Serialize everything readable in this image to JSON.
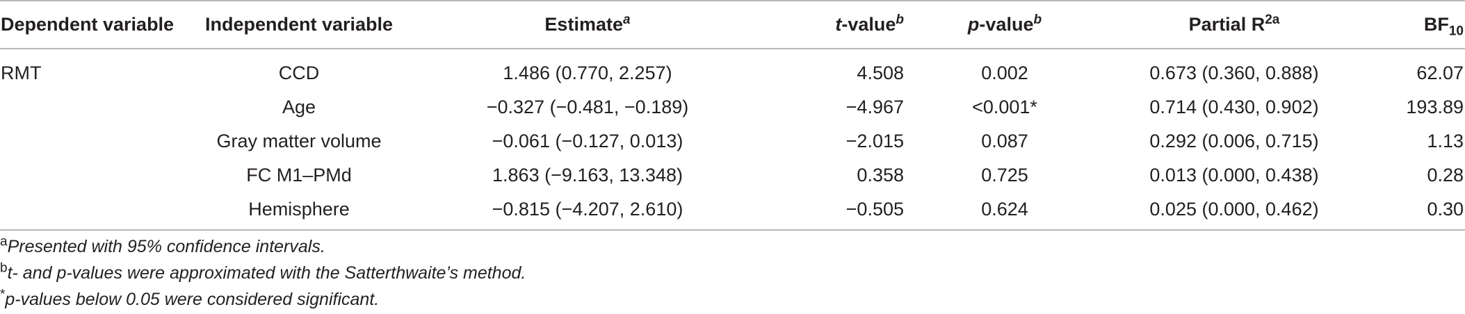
{
  "table": {
    "headers": {
      "dependent": "Dependent variable",
      "independent": "Independent variable",
      "estimate": "Estimate",
      "estimate_sup": "a",
      "t_value": "t",
      "t_value_rest": "-value",
      "t_value_sup": "b",
      "p_value": "p",
      "p_value_rest": "-value",
      "p_value_sup": "b",
      "partial_r2": "Partial R",
      "partial_r2_sup": "2a",
      "bf": "BF",
      "bf_sub": "10"
    },
    "rows": [
      {
        "dependent": "RMT",
        "independent": "CCD",
        "estimate": "1.486 (0.770, 2.257)",
        "t": "4.508",
        "p": "0.002",
        "r2": "0.673 (0.360, 0.888)",
        "bf": "62.07"
      },
      {
        "dependent": "",
        "independent": "Age",
        "estimate": "−0.327 (−0.481, −0.189)",
        "t": "−4.967",
        "p": "<0.001*",
        "r2": "0.714 (0.430, 0.902)",
        "bf": "193.89"
      },
      {
        "dependent": "",
        "independent": "Gray matter volume",
        "estimate": "−0.061 (−0.127, 0.013)",
        "t": "−2.015",
        "p": "0.087",
        "r2": "0.292 (0.006, 0.715)",
        "bf": "1.13"
      },
      {
        "dependent": "",
        "independent": "FC M1–PMd",
        "estimate": "1.863 (−9.163, 13.348)",
        "t": "0.358",
        "p": "0.725",
        "r2": "0.013 (0.000, 0.438)",
        "bf": "0.28"
      },
      {
        "dependent": "",
        "independent": "Hemisphere",
        "estimate": "−0.815 (−4.207, 2.610)",
        "t": "−0.505",
        "p": "0.624",
        "r2": "0.025 (0.000, 0.462)",
        "bf": "0.30"
      }
    ]
  },
  "footnotes": [
    {
      "mark": "a",
      "text": "Presented with 95% confidence intervals."
    },
    {
      "mark": "b",
      "text": "t- and p-values were approximated with the Satterthwaite’s method."
    },
    {
      "mark": "*",
      "text": "p-values below 0.05 were considered significant."
    }
  ]
}
